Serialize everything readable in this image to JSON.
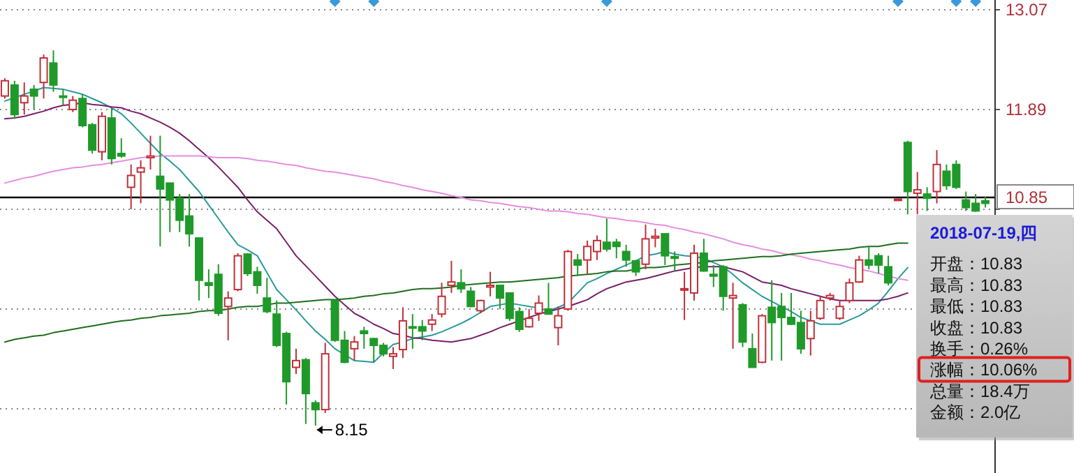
{
  "chart_data": {
    "type": "candlestick",
    "categories": [
      null,
      null,
      null,
      null,
      null,
      null,
      null,
      null,
      null,
      null,
      null,
      null,
      null,
      null,
      null,
      null,
      null,
      null,
      null,
      null,
      null,
      null,
      null,
      null,
      null,
      null,
      null,
      null,
      null,
      null,
      null,
      null,
      null,
      null,
      null,
      null,
      null,
      null,
      null,
      null,
      null,
      null,
      null,
      null,
      null,
      null,
      null,
      null,
      null,
      null,
      null,
      null,
      null,
      null,
      null,
      null,
      null,
      null,
      null,
      null,
      null,
      null,
      null,
      null,
      null,
      null,
      null,
      null,
      null,
      null,
      null,
      null,
      null,
      null,
      null,
      null,
      null,
      null,
      null,
      null,
      null,
      null,
      null,
      null,
      null,
      null,
      null,
      null,
      null,
      null,
      null,
      null,
      null,
      null,
      null,
      null,
      null,
      null,
      null,
      null,
      null,
      null
    ],
    "ohlc": [
      [
        12.05,
        12.26,
        12.02,
        12.23
      ],
      [
        12.18,
        12.23,
        11.78,
        11.83
      ],
      [
        11.97,
        12.21,
        11.83,
        12.05
      ],
      [
        12.13,
        12.18,
        11.89,
        12.05
      ],
      [
        12.21,
        12.54,
        12.02,
        12.5
      ],
      [
        12.44,
        12.59,
        12.1,
        12.18
      ],
      [
        12.05,
        12.13,
        11.94,
        12.04
      ],
      [
        11.89,
        12.05,
        11.86,
        12.0
      ],
      [
        12.02,
        12.07,
        11.68,
        11.7
      ],
      [
        11.71,
        11.73,
        11.37,
        11.41
      ],
      [
        11.39,
        11.86,
        11.29,
        11.81
      ],
      [
        11.79,
        11.91,
        11.24,
        11.31
      ],
      [
        11.37,
        11.55,
        11.32,
        11.34
      ],
      [
        10.97,
        11.24,
        10.71,
        11.11
      ],
      [
        11.15,
        11.29,
        10.78,
        11.2
      ],
      [
        11.32,
        11.58,
        11.18,
        11.34
      ],
      [
        11.1,
        11.58,
        10.27,
        10.95
      ],
      [
        11.02,
        11.02,
        10.44,
        10.82
      ],
      [
        10.84,
        10.89,
        10.44,
        10.58
      ],
      [
        10.63,
        10.89,
        10.27,
        10.42
      ],
      [
        10.37,
        10.37,
        9.63,
        9.87
      ],
      [
        9.84,
        10.0,
        9.66,
        9.81
      ],
      [
        9.94,
        10.06,
        9.45,
        9.48
      ],
      [
        9.56,
        9.74,
        9.16,
        9.66
      ],
      [
        9.76,
        10.19,
        9.74,
        10.16
      ],
      [
        10.18,
        10.19,
        9.92,
        9.95
      ],
      [
        9.97,
        10.03,
        9.71,
        9.81
      ],
      [
        9.66,
        9.9,
        9.48,
        9.5
      ],
      [
        9.47,
        9.63,
        9.08,
        9.1
      ],
      [
        9.24,
        9.26,
        8.4,
        8.67
      ],
      [
        8.84,
        9.06,
        8.76,
        8.92
      ],
      [
        8.93,
        8.95,
        8.17,
        8.53
      ],
      [
        8.42,
        8.45,
        8.15,
        8.34
      ],
      [
        8.34,
        9.13,
        8.3,
        9.0
      ],
      [
        9.63,
        9.64,
        9.14,
        9.16
      ],
      [
        9.16,
        9.27,
        8.89,
        8.9
      ],
      [
        9.06,
        9.21,
        8.92,
        9.14
      ],
      [
        9.27,
        9.32,
        9.06,
        9.24
      ],
      [
        9.18,
        9.19,
        8.9,
        9.1
      ],
      [
        9.1,
        9.13,
        8.97,
        9.0
      ],
      [
        8.97,
        9.08,
        8.82,
        9.0
      ],
      [
        9.05,
        9.55,
        8.95,
        9.39
      ],
      [
        9.32,
        9.47,
        9.06,
        9.31
      ],
      [
        9.32,
        9.4,
        9.16,
        9.27
      ],
      [
        9.35,
        9.47,
        9.27,
        9.4
      ],
      [
        9.47,
        9.84,
        9.43,
        9.68
      ],
      [
        9.81,
        10.1,
        9.72,
        9.85
      ],
      [
        9.84,
        10.0,
        9.72,
        9.77
      ],
      [
        9.74,
        9.79,
        9.55,
        9.56
      ],
      [
        9.51,
        9.64,
        9.48,
        9.63
      ],
      [
        9.79,
        9.97,
        9.68,
        9.81
      ],
      [
        9.81,
        9.81,
        9.53,
        9.66
      ],
      [
        9.72,
        9.72,
        9.39,
        9.42
      ],
      [
        9.5,
        9.55,
        9.26,
        9.29
      ],
      [
        9.32,
        9.53,
        9.31,
        9.42
      ],
      [
        9.48,
        9.69,
        9.39,
        9.6
      ],
      [
        9.53,
        9.84,
        9.47,
        9.47
      ],
      [
        9.31,
        9.56,
        9.1,
        9.45
      ],
      [
        9.53,
        10.23,
        9.51,
        10.21
      ],
      [
        10.11,
        10.18,
        9.92,
        10.05
      ],
      [
        10.11,
        10.34,
        9.94,
        10.27
      ],
      [
        10.21,
        10.4,
        10.11,
        10.34
      ],
      [
        10.32,
        10.6,
        10.21,
        10.24
      ],
      [
        10.32,
        10.36,
        10.13,
        10.27
      ],
      [
        10.21,
        10.29,
        10.03,
        10.11
      ],
      [
        10.1,
        10.11,
        9.92,
        9.97
      ],
      [
        10.06,
        10.53,
        10.0,
        10.36
      ],
      [
        10.37,
        10.48,
        10.26,
        10.39
      ],
      [
        10.42,
        10.42,
        10.05,
        10.16
      ],
      [
        10.15,
        10.21,
        9.98,
        10.13
      ],
      [
        9.76,
        9.97,
        9.4,
        9.77
      ],
      [
        9.72,
        10.29,
        9.63,
        10.19
      ],
      [
        10.19,
        10.36,
        9.97,
        9.98
      ],
      [
        9.94,
        10.05,
        9.79,
        9.92
      ],
      [
        10.03,
        10.05,
        9.51,
        9.68
      ],
      [
        9.66,
        9.84,
        9.06,
        9.69
      ],
      [
        9.58,
        9.6,
        9.08,
        9.14
      ],
      [
        9.06,
        9.24,
        8.84,
        8.84
      ],
      [
        8.9,
        9.47,
        8.89,
        9.45
      ],
      [
        9.55,
        9.87,
        8.92,
        9.37
      ],
      [
        9.56,
        9.72,
        8.92,
        9.43
      ],
      [
        9.43,
        9.72,
        9.34,
        9.35
      ],
      [
        9.37,
        9.51,
        9.0,
        9.06
      ],
      [
        9.18,
        9.51,
        8.98,
        9.39
      ],
      [
        9.42,
        9.68,
        9.4,
        9.63
      ],
      [
        9.66,
        9.72,
        9.63,
        9.69
      ],
      [
        9.42,
        9.63,
        9.4,
        9.56
      ],
      [
        9.63,
        9.89,
        9.6,
        9.84
      ],
      [
        9.85,
        10.16,
        9.84,
        10.11
      ],
      [
        10.11,
        10.27,
        10.0,
        10.05
      ],
      [
        10.16,
        10.19,
        9.95,
        10.05
      ],
      [
        10.03,
        10.16,
        9.81,
        9.84
      ],
      [
        10.83,
        10.83,
        10.83,
        10.83
      ],
      [
        11.5,
        11.52,
        10.65,
        10.92
      ],
      [
        10.9,
        11.15,
        10.65,
        10.94
      ],
      [
        10.89,
        10.97,
        10.69,
        10.84
      ],
      [
        10.92,
        11.41,
        10.78,
        11.24
      ],
      [
        11.16,
        11.24,
        10.94,
        10.99
      ],
      [
        11.24,
        11.29,
        10.95,
        10.97
      ],
      [
        10.82,
        10.92,
        10.69,
        10.73
      ],
      [
        10.78,
        10.89,
        10.68,
        10.69
      ],
      [
        10.81,
        10.86,
        10.73,
        10.78
      ]
    ],
    "series": [
      {
        "type": "line",
        "color": "#2a9a9a",
        "values": [
          11.99,
          12.03,
          12.07,
          12.11,
          12.15,
          12.14,
          12.13,
          12.1,
          12.07,
          12.02,
          11.97,
          11.91,
          11.84,
          11.73,
          11.61,
          11.49,
          11.37,
          11.28,
          11.18,
          11.05,
          10.92,
          10.76,
          10.6,
          10.44,
          10.29,
          10.23,
          10.16,
          9.96,
          9.76,
          9.64,
          9.52,
          9.39,
          9.27,
          9.17,
          9.06,
          8.99,
          8.92,
          8.91,
          8.9,
          9.01,
          9.11,
          9.14,
          9.18,
          9.2,
          9.22,
          9.26,
          9.31,
          9.36,
          9.42,
          9.49,
          9.56,
          9.58,
          9.6,
          9.58,
          9.56,
          9.54,
          9.51,
          9.55,
          9.6,
          9.72,
          9.84,
          9.89,
          9.95,
          10.0,
          10.05,
          10.1,
          10.16,
          10.18,
          10.21,
          10.18,
          10.16,
          10.15,
          10.13,
          10.08,
          10.03,
          9.94,
          9.84,
          9.76,
          9.68,
          9.62,
          9.56,
          9.5,
          9.43,
          9.39,
          9.35,
          9.35,
          9.35,
          9.4,
          9.45,
          9.52,
          9.6,
          9.74,
          9.89,
          10.02,
          null,
          null,
          null,
          null,
          null,
          null,
          null,
          null
        ]
      },
      {
        "type": "line",
        "color": "#7a1f6a",
        "values": [
          11.78,
          11.79,
          11.81,
          11.84,
          11.87,
          11.91,
          11.94,
          11.95,
          11.97,
          11.95,
          11.94,
          11.92,
          11.91,
          11.87,
          11.84,
          11.79,
          11.74,
          11.68,
          11.61,
          11.52,
          11.42,
          11.32,
          11.21,
          11.09,
          10.97,
          10.82,
          10.68,
          10.58,
          10.48,
          10.32,
          10.16,
          10.04,
          9.92,
          9.8,
          9.68,
          9.58,
          9.48,
          9.42,
          9.35,
          9.3,
          9.24,
          9.22,
          9.19,
          9.18,
          9.16,
          9.15,
          9.14,
          9.16,
          9.18,
          9.22,
          9.26,
          9.31,
          9.35,
          9.39,
          9.43,
          9.47,
          9.5,
          9.53,
          9.56,
          9.6,
          9.64,
          9.71,
          9.77,
          9.81,
          9.85,
          9.87,
          9.89,
          9.92,
          9.95,
          9.98,
          10.0,
          10.02,
          10.03,
          10.03,
          10.03,
          10.0,
          9.97,
          9.91,
          9.85,
          9.83,
          9.81,
          9.77,
          9.74,
          9.71,
          9.68,
          9.65,
          9.63,
          9.63,
          9.63,
          9.63,
          9.63,
          9.65,
          9.68,
          9.72,
          null,
          null,
          null,
          null,
          null,
          null,
          null,
          null
        ]
      },
      {
        "type": "line",
        "color": "#e68ee0",
        "values": [
          11.02,
          11.05,
          11.08,
          11.1,
          11.13,
          11.16,
          11.18,
          11.2,
          11.21,
          11.23,
          11.24,
          11.26,
          11.28,
          11.3,
          11.32,
          11.33,
          11.34,
          11.34,
          11.34,
          11.34,
          11.34,
          11.33,
          11.32,
          11.32,
          11.32,
          11.31,
          11.29,
          11.28,
          11.26,
          11.24,
          11.23,
          11.2,
          11.18,
          11.16,
          11.15,
          11.13,
          11.11,
          11.09,
          11.07,
          11.04,
          11.02,
          10.99,
          10.97,
          10.94,
          10.92,
          10.9,
          10.87,
          10.85,
          10.82,
          10.81,
          10.79,
          10.78,
          10.76,
          10.74,
          10.73,
          10.71,
          10.69,
          10.69,
          10.68,
          10.66,
          10.65,
          10.63,
          10.61,
          10.6,
          10.58,
          10.57,
          10.55,
          10.53,
          10.52,
          10.49,
          10.47,
          10.44,
          10.42,
          10.39,
          10.36,
          10.32,
          10.29,
          10.27,
          10.24,
          10.22,
          10.19,
          10.17,
          10.15,
          10.12,
          10.1,
          10.07,
          10.05,
          10.02,
          10.0,
          9.98,
          9.95,
          9.92,
          9.89,
          9.87,
          null,
          null,
          null,
          null,
          null,
          null,
          null,
          null
        ]
      },
      {
        "type": "line",
        "color": "#1f6e1f",
        "values": [
          9.14,
          9.17,
          9.19,
          9.21,
          9.22,
          9.25,
          9.27,
          9.29,
          9.31,
          9.33,
          9.35,
          9.37,
          9.39,
          9.4,
          9.42,
          9.43,
          9.45,
          9.46,
          9.47,
          9.48,
          9.5,
          9.51,
          9.51,
          9.53,
          9.55,
          9.56,
          9.56,
          9.58,
          9.6,
          9.6,
          9.61,
          9.62,
          9.63,
          9.64,
          9.64,
          9.65,
          9.66,
          9.68,
          9.69,
          9.71,
          9.72,
          9.74,
          9.76,
          9.77,
          9.77,
          9.78,
          9.79,
          9.81,
          9.82,
          9.83,
          9.84,
          9.85,
          9.85,
          9.86,
          9.87,
          9.88,
          9.89,
          9.9,
          9.92,
          9.93,
          9.94,
          9.95,
          9.97,
          9.98,
          9.98,
          10.0,
          10.02,
          10.02,
          10.03,
          10.05,
          10.06,
          10.07,
          10.08,
          10.1,
          10.11,
          10.12,
          10.13,
          10.14,
          10.15,
          10.15,
          10.16,
          10.18,
          10.19,
          10.2,
          10.21,
          10.22,
          10.23,
          10.24,
          10.26,
          10.27,
          10.27,
          10.29,
          10.31,
          10.31,
          null,
          null,
          null,
          null,
          null,
          null,
          null,
          null
        ]
      }
    ],
    "ylim": [
      7.59,
      13.07
    ],
    "yticks": [
      13.07,
      11.89,
      {
        "value": 10.71,
        "label": null
      },
      {
        "value": 9.53,
        "label": null
      },
      {
        "value": 8.35,
        "label": null
      }
    ],
    "tick_labels": "y",
    "grid": "y",
    "ref_lines": [
      {
        "axis": "y",
        "value": 10.85,
        "label": "10.85",
        "color": "#000000"
      }
    ],
    "annotations": [
      "8.15",
      "2018-07-19,四",
      "开盘：10.83",
      "最高：10.83",
      "最低：10.83",
      "收盘：10.83",
      "换手：0.26%",
      "涨幅：10.06%",
      "总量：18.4万",
      "金额：2.0亿"
    ]
  }
}
